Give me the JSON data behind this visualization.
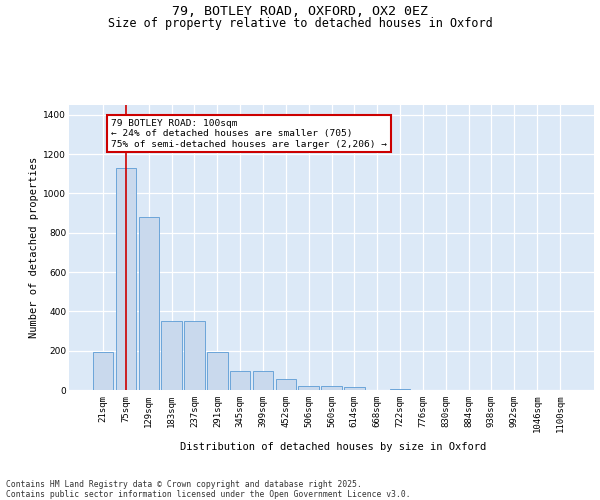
{
  "title_line1": "79, BOTLEY ROAD, OXFORD, OX2 0EZ",
  "title_line2": "Size of property relative to detached houses in Oxford",
  "xlabel": "Distribution of detached houses by size in Oxford",
  "ylabel": "Number of detached properties",
  "bar_color": "#c9d9ed",
  "bar_edge_color": "#5b9bd5",
  "background_color": "#dce9f7",
  "grid_color": "#ffffff",
  "annotation_line1": "79 BOTLEY ROAD: 100sqm",
  "annotation_line2": "← 24% of detached houses are smaller (705)",
  "annotation_line3": "75% of semi-detached houses are larger (2,206) →",
  "annotation_box_color": "#cc0000",
  "vline_color": "#cc0000",
  "vline_x": 1.0,
  "categories": [
    "21sqm",
    "75sqm",
    "129sqm",
    "183sqm",
    "237sqm",
    "291sqm",
    "345sqm",
    "399sqm",
    "452sqm",
    "506sqm",
    "560sqm",
    "614sqm",
    "668sqm",
    "722sqm",
    "776sqm",
    "830sqm",
    "884sqm",
    "938sqm",
    "992sqm",
    "1046sqm",
    "1100sqm"
  ],
  "values": [
    195,
    1130,
    880,
    350,
    350,
    195,
    95,
    95,
    55,
    20,
    20,
    15,
    0,
    5,
    0,
    0,
    0,
    0,
    0,
    0,
    0
  ],
  "ylim": [
    0,
    1450
  ],
  "yticks": [
    0,
    200,
    400,
    600,
    800,
    1000,
    1200,
    1400
  ],
  "footer_text": "Contains HM Land Registry data © Crown copyright and database right 2025.\nContains public sector information licensed under the Open Government Licence v3.0.",
  "title_fontsize": 9.5,
  "subtitle_fontsize": 8.5,
  "axis_label_fontsize": 7.5,
  "tick_fontsize": 6.5,
  "annotation_fontsize": 6.8,
  "footer_fontsize": 5.8
}
